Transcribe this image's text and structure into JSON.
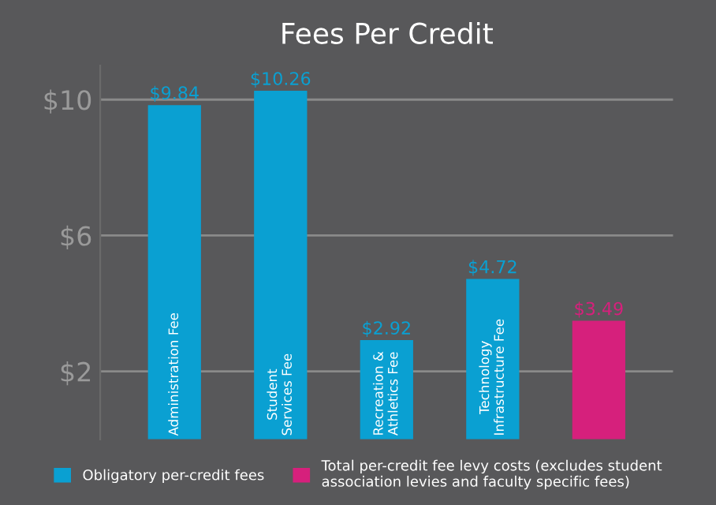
{
  "chart_data": {
    "type": "bar",
    "title": "Fees Per Credit",
    "categories": [
      "Administration Fee",
      "Student\nServices Fee",
      "Recreation &\nAthletics Fee",
      "Technology\nInfrastructure Fee",
      null
    ],
    "series": [
      {
        "name": "Obligatory per-credit fees",
        "color": "#0aa0d2",
        "values": [
          9.84,
          10.26,
          2.92,
          4.72,
          null
        ],
        "value_labels": [
          "$9.84",
          "$10.26",
          "$2.92",
          "$4.72",
          null
        ]
      },
      {
        "name": "Total per-credit fee levy costs (excludes student\nassociation levies and faculty specific fees)",
        "color": "#d6207c",
        "values": [
          null,
          null,
          null,
          null,
          3.49
        ],
        "value_labels": [
          null,
          null,
          null,
          null,
          "$3.49"
        ]
      }
    ],
    "ylim": [
      0,
      11
    ],
    "yticks": [
      {
        "value": 2,
        "label": "$2"
      },
      {
        "value": 6,
        "label": "$6"
      },
      {
        "value": 10,
        "label": "$10"
      }
    ],
    "grid": "y",
    "legend": "bottom"
  }
}
